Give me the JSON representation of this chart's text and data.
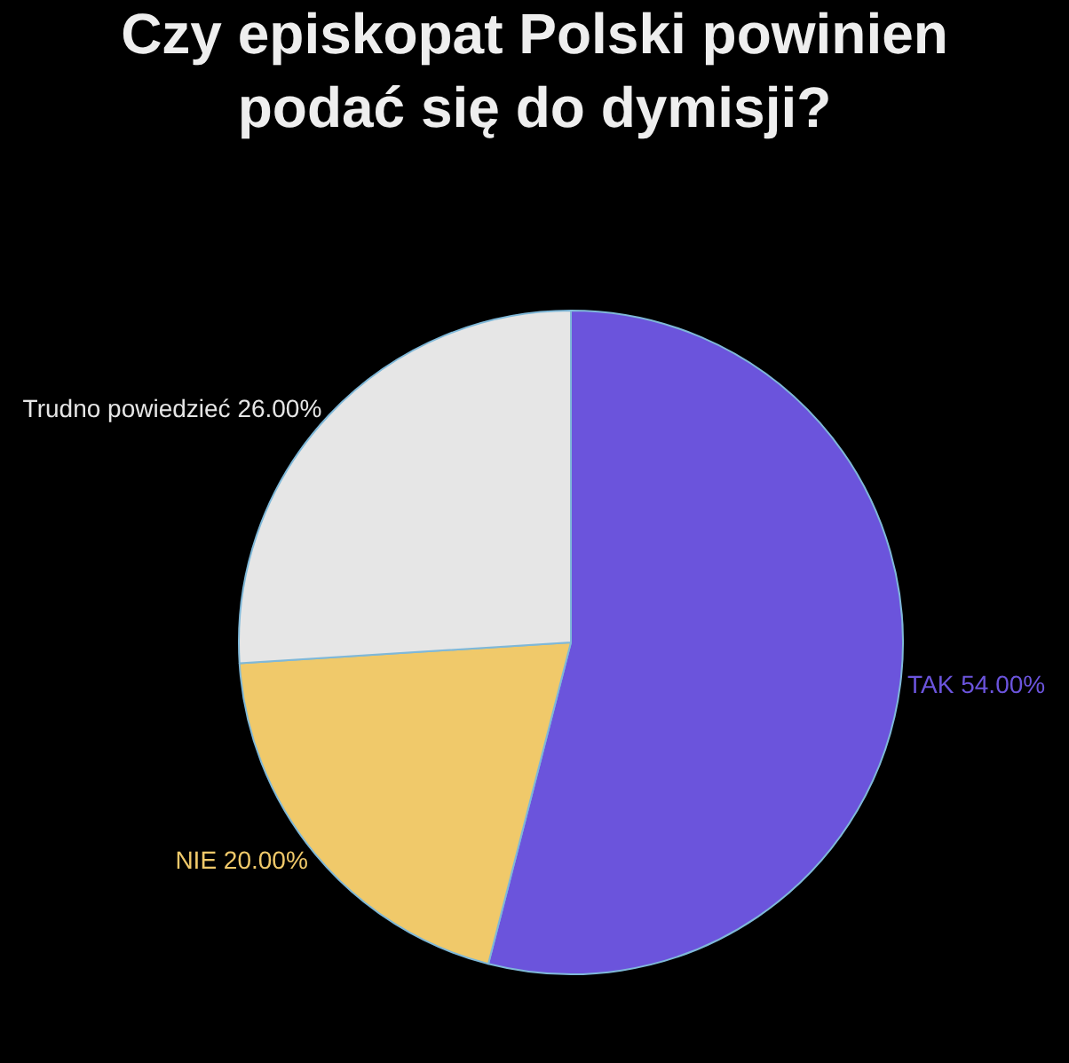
{
  "chart_data": {
    "type": "pie",
    "title": "Czy episkopat Polski powinien\npodać się do dymisji?",
    "categories": [
      "TAK",
      "NIE",
      "Trudno powiedzieć"
    ],
    "values": [
      54,
      20,
      26
    ],
    "value_labels": [
      "54.00%",
      "20.00%",
      "26.00%"
    ],
    "colors": [
      "#6b54dc",
      "#f0c96a",
      "#e6e6e6"
    ],
    "legend": false
  }
}
